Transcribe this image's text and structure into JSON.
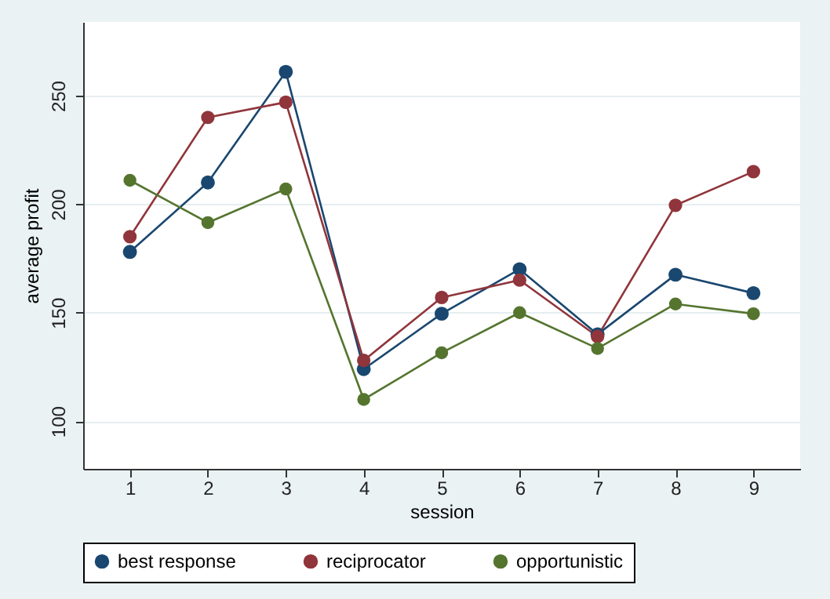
{
  "chart_data": {
    "type": "line",
    "xlabel": "session",
    "ylabel": "average profit",
    "x": [
      1,
      2,
      3,
      4,
      5,
      6,
      7,
      8,
      9
    ],
    "xlim": [
      0.4,
      9.6
    ],
    "xticks": [
      1,
      2,
      3,
      4,
      5,
      6,
      7,
      8,
      9
    ],
    "ylim": [
      78,
      284
    ],
    "yticks": [
      100,
      150,
      200,
      250
    ],
    "grid": "y",
    "legend": "bottom",
    "marker": "circle",
    "line_style": "solid",
    "series": [
      {
        "name": "best response",
        "color": "#1a476f",
        "values": [
          178,
          210,
          261,
          124,
          149.5,
          170,
          140,
          167.5,
          159
        ]
      },
      {
        "name": "reciprocator",
        "color": "#90353b",
        "values": [
          185,
          240,
          247,
          128,
          157,
          165,
          139,
          199.5,
          215
        ]
      },
      {
        "name": "opportunistic",
        "color": "#55752f",
        "values": [
          211,
          191.5,
          207,
          110,
          131.5,
          150,
          133.5,
          154,
          149.5
        ]
      }
    ]
  }
}
